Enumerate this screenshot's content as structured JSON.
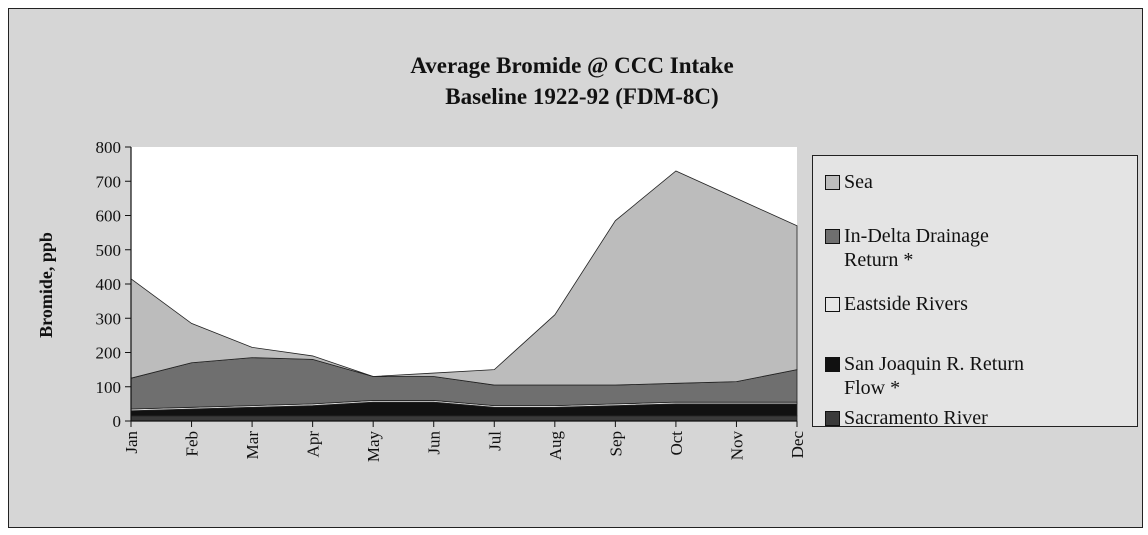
{
  "chart_data": {
    "type": "stacked_area",
    "title": "Average Bromide @ CCC Intake",
    "subtitle": "Baseline 1922-92 (FDM-8C)",
    "y_label": "Bromide, ppb",
    "categories": [
      "Jan",
      "Feb",
      "Mar",
      "Apr",
      "May",
      "Jun",
      "Jul",
      "Aug",
      "Sep",
      "Oct",
      "Nov",
      "Dec"
    ],
    "series": [
      {
        "name": "Sacramento River",
        "color": "#3a3a3a",
        "values": [
          15,
          15,
          15,
          15,
          15,
          15,
          15,
          15,
          15,
          15,
          15,
          15
        ]
      },
      {
        "name": "San Joaquin R. Return Flow *",
        "color": "#111111",
        "values": [
          15,
          20,
          25,
          30,
          40,
          40,
          25,
          25,
          30,
          35,
          35,
          35
        ]
      },
      {
        "name": "Eastside Rivers",
        "color": "#e6e6e6",
        "values": [
          5,
          5,
          5,
          5,
          5,
          5,
          5,
          5,
          5,
          5,
          5,
          5
        ]
      },
      {
        "name": "In-Delta Drainage Return *",
        "color": "#6f6f6f",
        "values": [
          90,
          130,
          140,
          130,
          70,
          70,
          60,
          60,
          55,
          55,
          60,
          95
        ]
      },
      {
        "name": "Sea",
        "color": "#bcbcbc",
        "values": [
          290,
          115,
          30,
          10,
          0,
          10,
          45,
          205,
          480,
          620,
          535,
          420
        ]
      }
    ],
    "ylim": [
      0,
      800
    ],
    "yticks": [
      0,
      100,
      200,
      300,
      400,
      500,
      600,
      700,
      800
    ]
  }
}
